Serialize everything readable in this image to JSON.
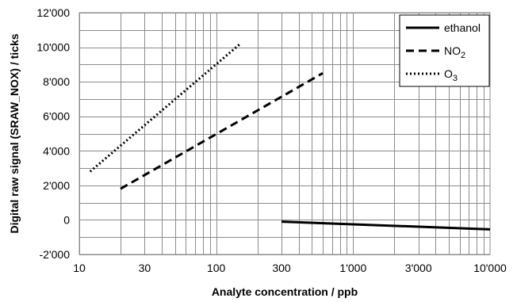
{
  "chart_data": {
    "type": "line",
    "title": "",
    "xlabel": "Analyte concentration / ppb",
    "ylabel": "Digital raw signal (SRAW_NOX) / ticks",
    "x_scale": "log",
    "xlim": [
      10,
      10000
    ],
    "ylim": [
      -2000,
      12000
    ],
    "x_ticks": [
      10,
      30,
      100,
      300,
      1000,
      3000,
      10000
    ],
    "x_tick_labels": [
      "10",
      "30",
      "100",
      "300",
      "1'000",
      "3'000",
      "10'000"
    ],
    "y_ticks": [
      -2000,
      0,
      2000,
      4000,
      6000,
      8000,
      10000,
      12000
    ],
    "y_tick_labels": [
      "-2'000",
      "0",
      "2'000",
      "4'000",
      "6'000",
      "8'000",
      "10'000",
      "12'000"
    ],
    "grid": true,
    "legend_position": "top-right",
    "series": [
      {
        "name": "ethanol",
        "name_main": "ethanol",
        "name_sub": "",
        "style": "solid",
        "color": "#000000",
        "x": [
          300,
          10000
        ],
        "y": [
          -100,
          -550
        ]
      },
      {
        "name": "NO2",
        "name_main": "NO",
        "name_sub": "2",
        "style": "dashed",
        "color": "#000000",
        "x": [
          20,
          600
        ],
        "y": [
          1800,
          8500
        ]
      },
      {
        "name": "O3",
        "name_main": "O",
        "name_sub": "3",
        "style": "dotted",
        "color": "#000000",
        "x": [
          12,
          150
        ],
        "y": [
          2800,
          10200
        ]
      }
    ]
  }
}
